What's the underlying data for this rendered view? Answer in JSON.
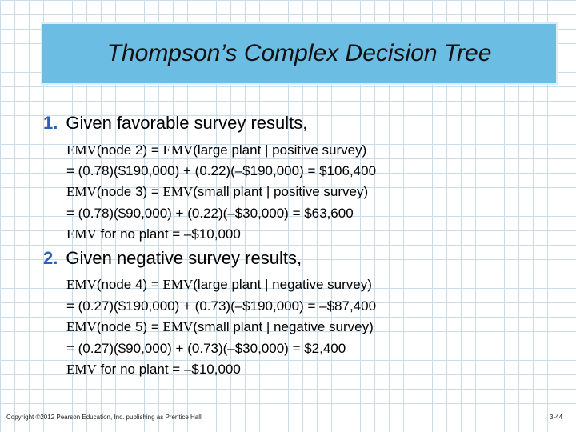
{
  "title": "Thompson’s Complex Decision Tree",
  "items": [
    {
      "number": "1.",
      "heading": "Given favorable survey results,",
      "lines": [
        {
          "a": "EMV",
          "b": "(node 2) = ",
          "c": "EMV",
          "d": "(large plant | positive survey)"
        },
        {
          "text": "= (0.78)($190,000) + (0.22)(–$190,000) = $106,400"
        },
        {
          "a": "EMV",
          "b": "(node 3) = ",
          "c": "EMV",
          "d": "(small plant | positive survey)"
        },
        {
          "text": "= (0.78)($90,000) + (0.22)(–$30,000) = $63,600"
        },
        {
          "a": "EMV",
          "b": " for no plant = –$10,000"
        }
      ]
    },
    {
      "number": "2.",
      "heading": "Given negative survey results,",
      "lines": [
        {
          "a": "EMV",
          "b": "(node 4) = ",
          "c": "EMV",
          "d": "(large plant | negative survey)"
        },
        {
          "text": "= (0.27)($190,000) + (0.73)(–$190,000) = –$87,400"
        },
        {
          "a": "EMV",
          "b": "(node 5) = ",
          "c": "EMV",
          "d": "(small plant | negative survey)"
        },
        {
          "text": "= (0.27)($90,000) + (0.73)(–$30,000) = $2,400"
        },
        {
          "a": "EMV",
          "b": " for no plant = –$10,000"
        }
      ]
    }
  ],
  "footer": {
    "copyright": "Copyright ©2012 Pearson Education, Inc. publishing as Prentice Hall",
    "page": "3-44"
  }
}
